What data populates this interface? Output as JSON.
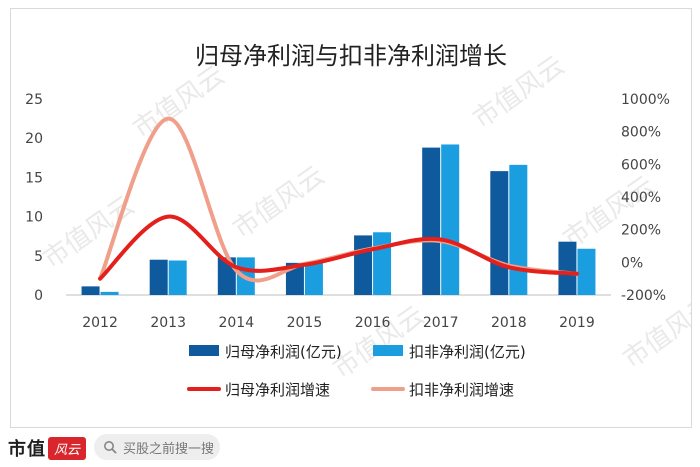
{
  "chart_data": {
    "type": "bar+line",
    "title": "归母净利润与扣非净利润增长",
    "categories": [
      "2012",
      "2013",
      "2014",
      "2015",
      "2016",
      "2017",
      "2018",
      "2019"
    ],
    "left_axis": {
      "min": 0,
      "max": 25,
      "ticks": [
        "25",
        "20",
        "15",
        "10",
        "5",
        "0"
      ]
    },
    "right_axis": {
      "min": -200,
      "max": 1000,
      "ticks": [
        "1000%",
        "800%",
        "600%",
        "400%",
        "200%",
        "0%",
        "-200%"
      ]
    },
    "series": [
      {
        "name": "归母净利润(亿元)",
        "type": "bar",
        "axis": "left",
        "color": "#0e5a9c",
        "values": [
          1.1,
          4.5,
          4.8,
          4.1,
          7.6,
          18.8,
          15.8,
          6.8
        ]
      },
      {
        "name": "扣非净利润(亿元)",
        "type": "bar",
        "axis": "left",
        "color": "#1a9ee0",
        "values": [
          0.4,
          4.4,
          4.8,
          4.2,
          8.0,
          19.2,
          16.6,
          5.9
        ]
      },
      {
        "name": "归母净利润增速",
        "type": "line",
        "axis": "right",
        "color": "#e3201b",
        "values": [
          -100,
          280,
          -30,
          -15,
          80,
          140,
          -30,
          -70
        ]
      },
      {
        "name": "扣非净利润增速",
        "type": "line",
        "axis": "right",
        "color": "#f0a08a",
        "values": [
          -100,
          880,
          -50,
          -10,
          85,
          130,
          -20,
          -70
        ]
      }
    ],
    "watermark": "市值风云"
  },
  "footer": {
    "brand_name": "市值",
    "brand_badge": "风云",
    "search_placeholder": "买股之前搜一搜",
    "search_icon": "search-icon"
  }
}
